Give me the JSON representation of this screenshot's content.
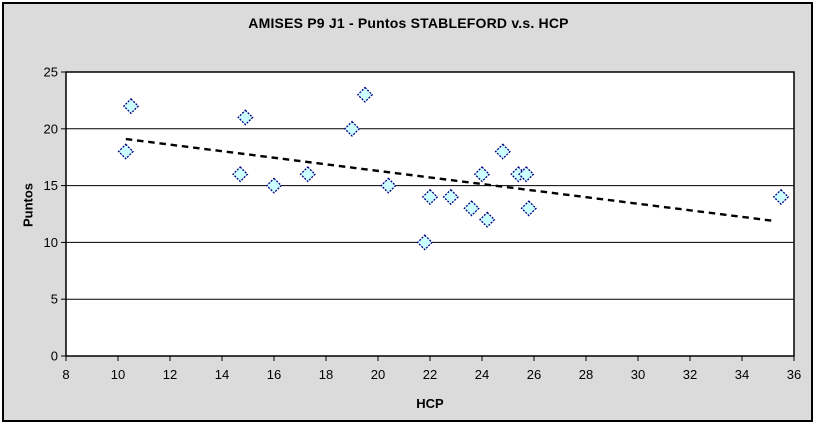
{
  "chart_data": {
    "type": "scatter",
    "title": "AMISES P9 J1 - Puntos STABLEFORD v.s. HCP",
    "xlabel": "HCP",
    "ylabel": "Puntos",
    "xlim": [
      8,
      36
    ],
    "ylim": [
      0,
      25
    ],
    "xticks": [
      8,
      10,
      12,
      14,
      16,
      18,
      20,
      22,
      24,
      26,
      28,
      30,
      32,
      34,
      36
    ],
    "yticks": [
      0,
      5,
      10,
      15,
      20,
      25
    ],
    "grid": "horizontal-major",
    "legend": "none",
    "series": [
      {
        "name": "Puntos STABLEFORD",
        "marker": "diamond",
        "points": [
          [
            10.3,
            18
          ],
          [
            10.5,
            22
          ],
          [
            14.7,
            16
          ],
          [
            14.9,
            21
          ],
          [
            16,
            15
          ],
          [
            17.3,
            16
          ],
          [
            19,
            20
          ],
          [
            19.5,
            23
          ],
          [
            20.4,
            15
          ],
          [
            21.8,
            10
          ],
          [
            22,
            14
          ],
          [
            22.8,
            14
          ],
          [
            23.6,
            13
          ],
          [
            24,
            16
          ],
          [
            24.2,
            12
          ],
          [
            24.8,
            18
          ],
          [
            25.4,
            16
          ],
          [
            25.7,
            16
          ],
          [
            25.8,
            13
          ],
          [
            35.5,
            14
          ]
        ]
      }
    ],
    "trendline": {
      "style": "dotted",
      "x1": 10.3,
      "y1": 19.1,
      "x2": 35.2,
      "y2": 11.9
    },
    "colors": {
      "outer_background": "#DBDBDB",
      "plot_background": "#FFFFFF",
      "axis": "#000000",
      "gridline": "#000000",
      "marker_fill": "#CCFFFF",
      "marker_stroke": "#000080",
      "trendline": "#000000",
      "text": "#000000"
    }
  }
}
